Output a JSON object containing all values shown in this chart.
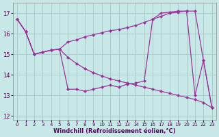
{
  "line1_x": [
    0,
    1,
    2,
    3,
    4,
    5,
    6,
    7,
    8,
    9,
    10,
    11,
    12,
    13,
    14,
    15,
    16,
    17,
    18,
    19,
    20,
    21,
    22,
    23
  ],
  "line1_y": [
    16.7,
    16.1,
    15.0,
    15.1,
    15.2,
    15.25,
    15.6,
    15.7,
    15.85,
    15.95,
    16.05,
    16.15,
    16.2,
    16.3,
    16.4,
    16.55,
    16.7,
    16.85,
    17.0,
    17.05,
    17.1,
    17.1,
    14.7,
    12.4
  ],
  "line2_x": [
    0,
    1,
    2,
    3,
    4,
    5,
    6,
    7,
    8,
    9,
    10,
    11,
    12,
    13,
    14,
    15,
    16,
    17,
    18,
    19,
    20,
    21,
    22,
    23
  ],
  "line2_y": [
    16.7,
    16.1,
    15.0,
    15.1,
    15.2,
    15.25,
    14.85,
    14.55,
    14.3,
    14.1,
    13.95,
    13.8,
    13.7,
    13.6,
    13.5,
    13.4,
    13.3,
    13.2,
    13.1,
    13.0,
    12.9,
    12.8,
    12.65,
    12.4
  ],
  "line3_x": [
    0,
    1,
    2,
    3,
    4,
    5,
    6,
    7,
    8,
    9,
    10,
    11,
    12,
    13,
    14,
    15,
    16,
    17,
    18,
    19,
    20,
    21,
    22,
    23
  ],
  "line3_y": [
    16.7,
    16.1,
    15.0,
    15.1,
    15.2,
    15.25,
    13.3,
    13.3,
    13.2,
    13.3,
    13.4,
    13.5,
    13.4,
    13.55,
    13.6,
    13.7,
    16.7,
    17.0,
    17.05,
    17.1,
    17.1,
    13.0,
    14.7,
    12.4
  ],
  "line_color": "#993399",
  "bg_color": "#c8e8e8",
  "grid_color": "#aacece",
  "ylim": [
    11.8,
    17.5
  ],
  "xlim": [
    -0.5,
    23.5
  ],
  "yticks": [
    12,
    13,
    14,
    15,
    16,
    17
  ],
  "xticks": [
    0,
    1,
    2,
    3,
    4,
    5,
    6,
    7,
    8,
    9,
    10,
    11,
    12,
    13,
    14,
    15,
    16,
    17,
    18,
    19,
    20,
    21,
    22,
    23
  ],
  "xlabel": "Windchill (Refroidissement éolien,°C)",
  "marker": "D",
  "marker_size": 2.2
}
